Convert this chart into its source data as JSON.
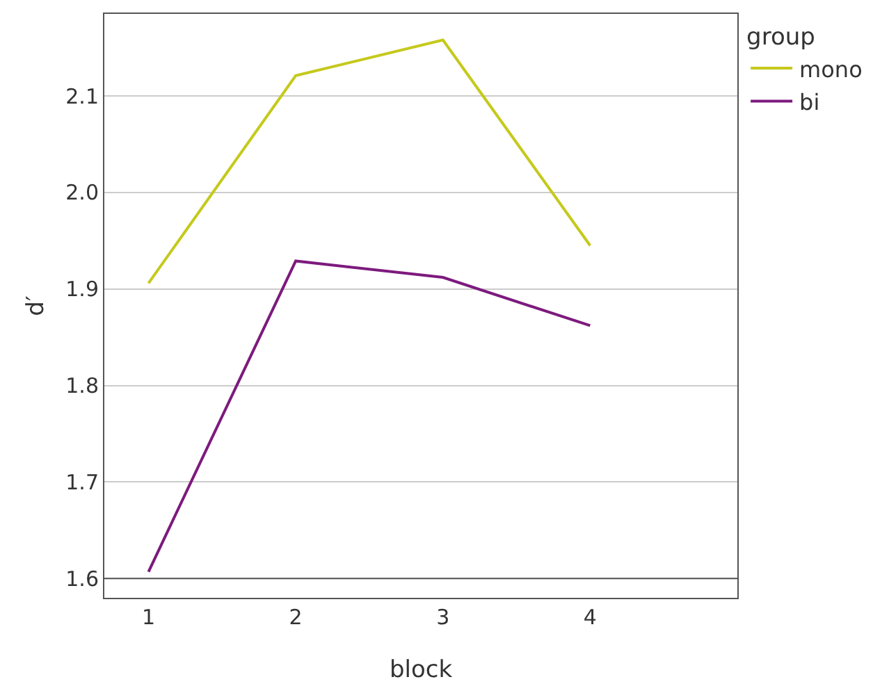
{
  "chart_data": {
    "type": "line",
    "xlabel": "block",
    "ylabel": "d′",
    "legend_title": "group",
    "x": [
      1,
      2,
      3,
      4
    ],
    "series": [
      {
        "name": "mono",
        "color": "#c5c91c",
        "values": [
          1.906,
          2.121,
          2.158,
          1.945
        ]
      },
      {
        "name": "bi",
        "color": "#7d1a7d",
        "values": [
          1.607,
          1.929,
          1.912,
          1.862
        ]
      }
    ],
    "xlim": [
      0.7,
      5.0
    ],
    "xticks": [
      1,
      2,
      3,
      4
    ],
    "ylim": [
      1.58,
      2.185
    ],
    "yticks": [
      1.6,
      1.7,
      1.8,
      1.9,
      {
        "value": 2,
        "label": "2.0"
      },
      2.1
    ],
    "ref_lines": [
      {
        "axis": "y",
        "value": 1.6,
        "color": "#555555"
      }
    ],
    "grid": "y",
    "legend": "top right",
    "marker": "none",
    "line_style": "solid"
  }
}
